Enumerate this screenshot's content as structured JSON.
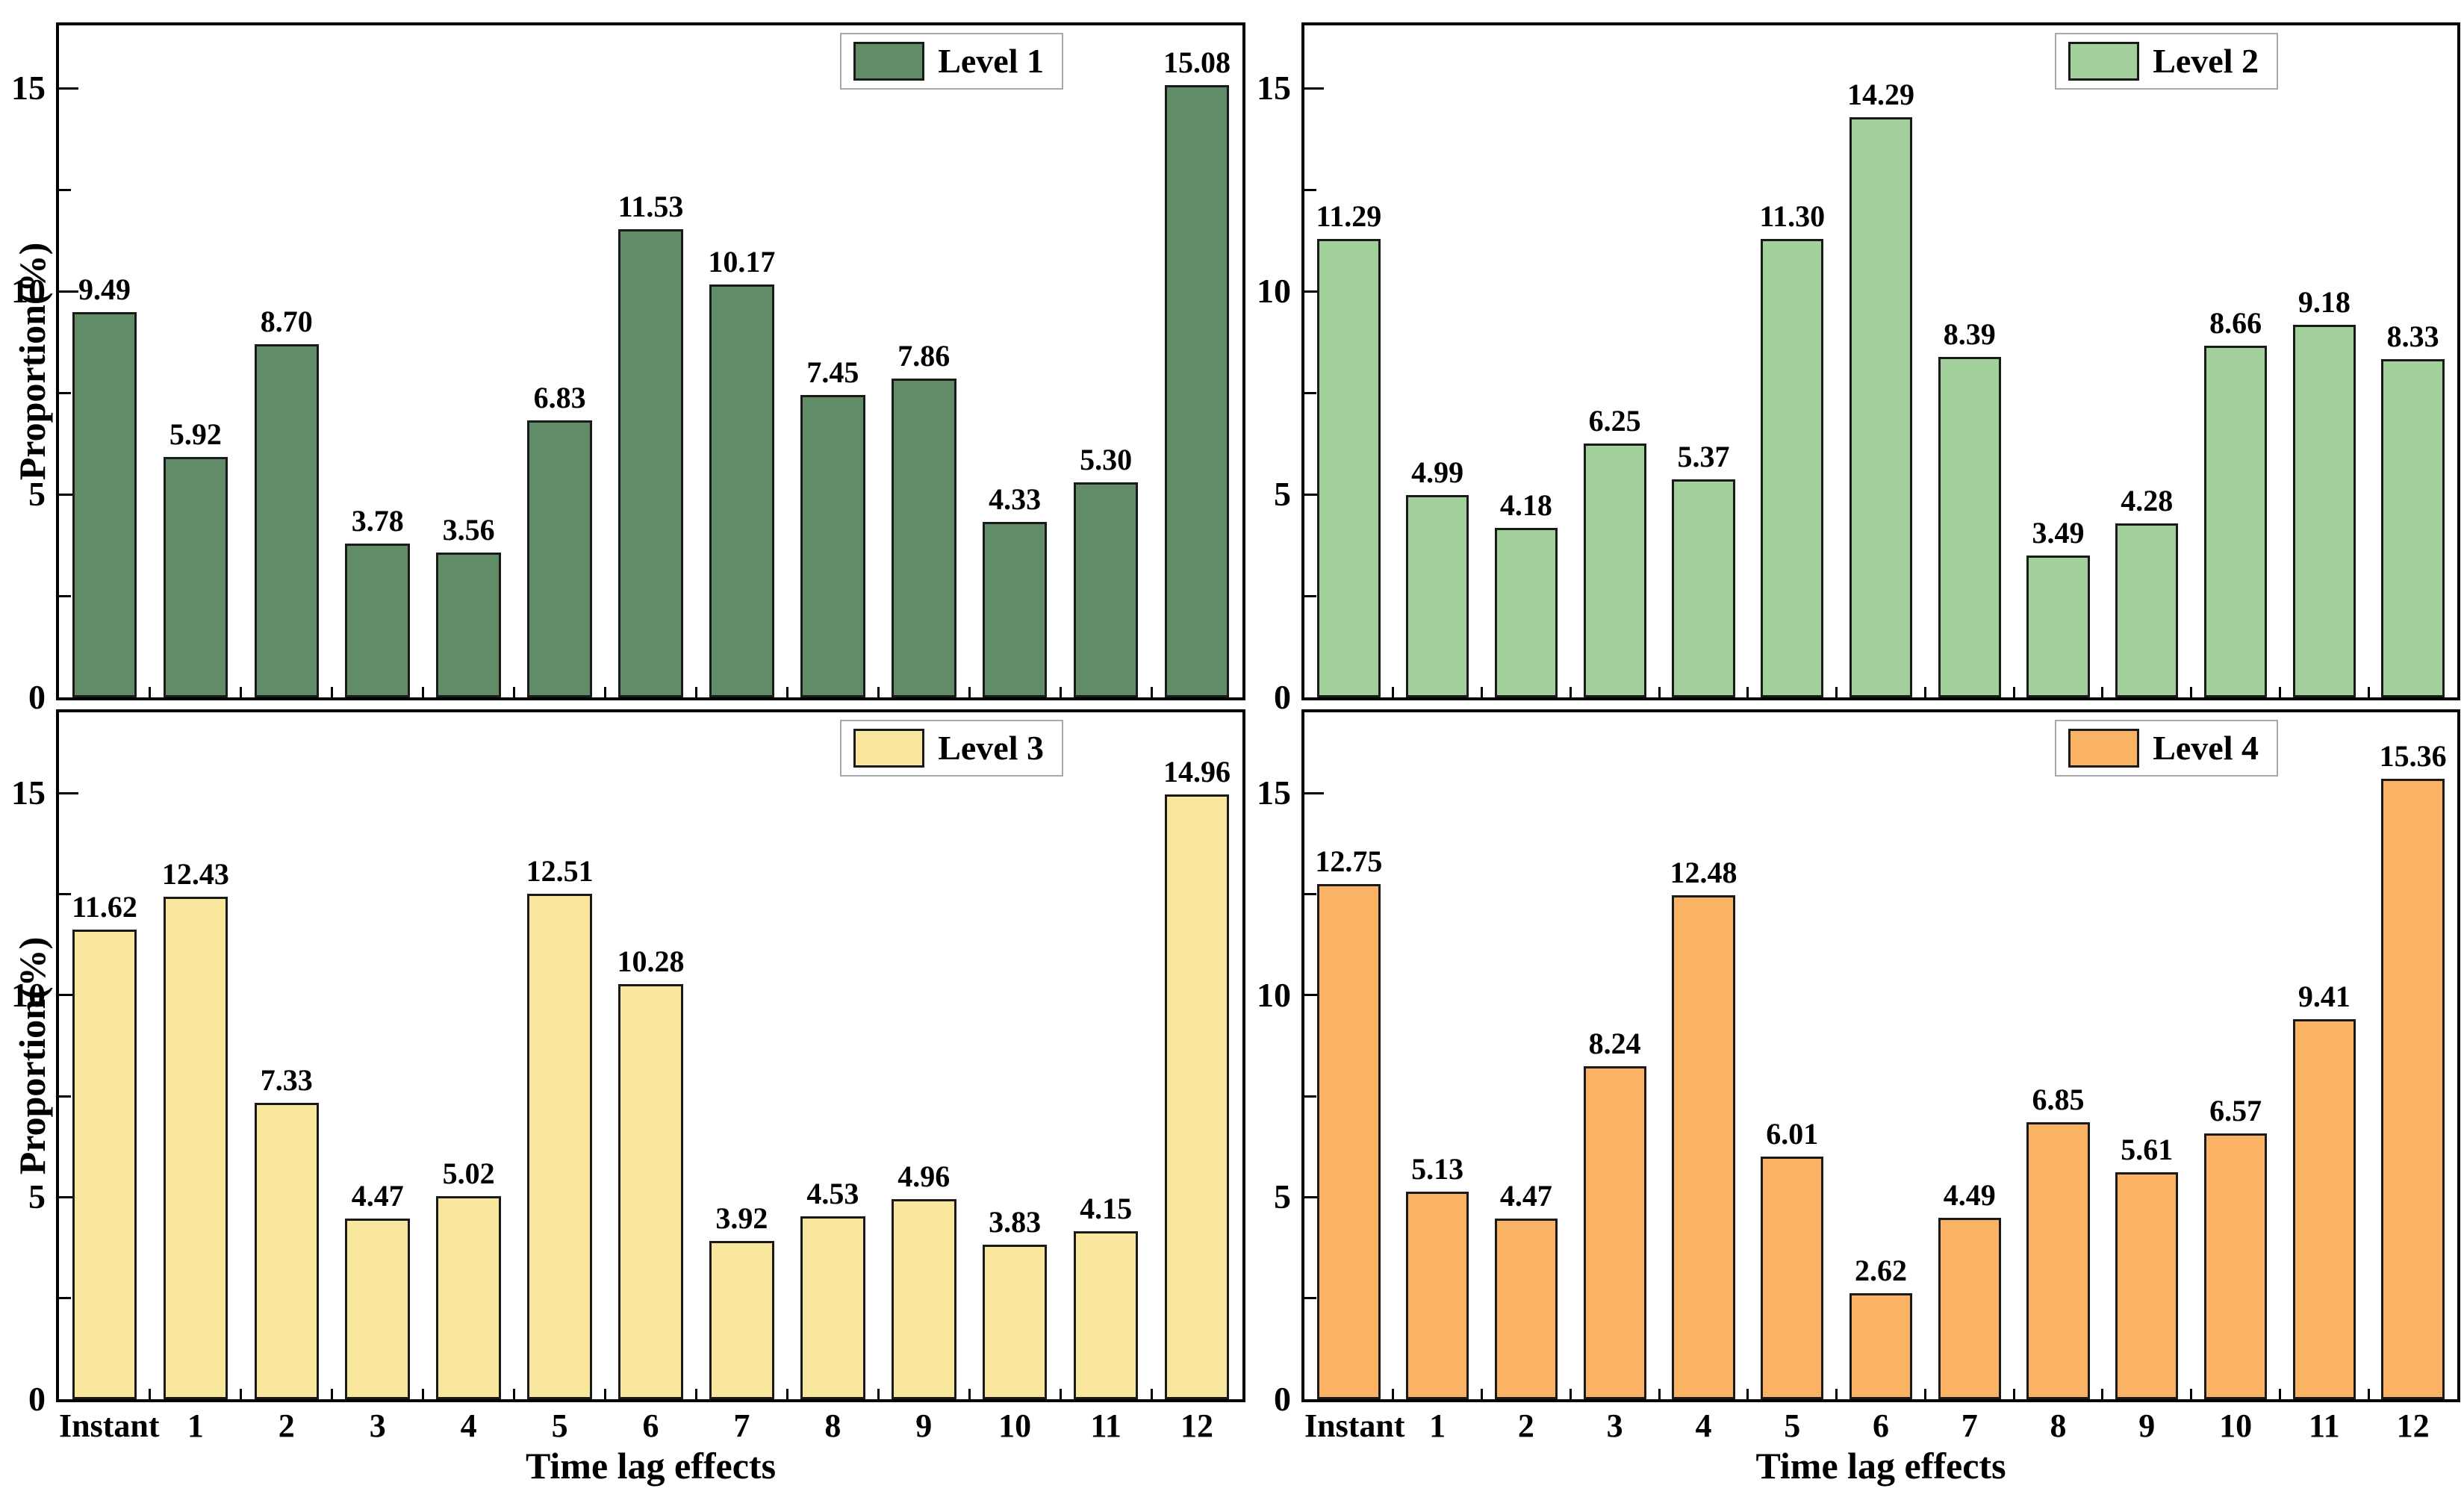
{
  "chart_data": {
    "type": "bar",
    "grid": false,
    "background": "#ffffff",
    "bar_border_color": "#1a1a1a",
    "y_axis": {
      "title": "Proportion(%)",
      "tick_labels": [
        "0",
        "5",
        "10",
        "15"
      ],
      "major_tick_values": [
        5,
        10,
        15
      ],
      "minor_tick_values": [
        2.5,
        7.5,
        12.5
      ],
      "ylim_top_row": [
        0,
        16.55
      ],
      "ylim_bottom_row": [
        0,
        17.0
      ]
    },
    "x_axis": {
      "title": "Time lag effects",
      "categories": [
        "Instant",
        "1",
        "2",
        "3",
        "4",
        "5",
        "6",
        "7",
        "8",
        "9",
        "10",
        "11",
        "12"
      ]
    },
    "panels": [
      {
        "name": "level-1",
        "legend": "Level 1",
        "color": "#608C68",
        "position": "top-left",
        "values": [
          9.49,
          5.92,
          8.7,
          3.78,
          3.56,
          6.83,
          11.53,
          10.17,
          7.45,
          7.86,
          4.33,
          5.3,
          15.08
        ]
      },
      {
        "name": "level-2",
        "legend": "Level 2",
        "color": "#A2D09B",
        "position": "top-right",
        "values": [
          11.29,
          4.99,
          4.18,
          6.25,
          5.37,
          11.3,
          14.29,
          8.39,
          3.49,
          4.28,
          8.66,
          9.18,
          8.33
        ]
      },
      {
        "name": "level-3",
        "legend": "Level 3",
        "color": "#FAE79E",
        "position": "bottom-left",
        "values": [
          11.62,
          12.43,
          7.33,
          4.47,
          5.02,
          12.51,
          10.28,
          3.92,
          4.53,
          4.96,
          3.83,
          4.15,
          14.96
        ]
      },
      {
        "name": "level-4",
        "legend": "Level 4",
        "color": "#FAB364",
        "position": "bottom-right",
        "values": [
          12.75,
          5.13,
          4.47,
          8.24,
          12.48,
          6.01,
          2.62,
          4.49,
          6.85,
          5.61,
          6.57,
          9.41,
          15.36
        ]
      }
    ]
  }
}
